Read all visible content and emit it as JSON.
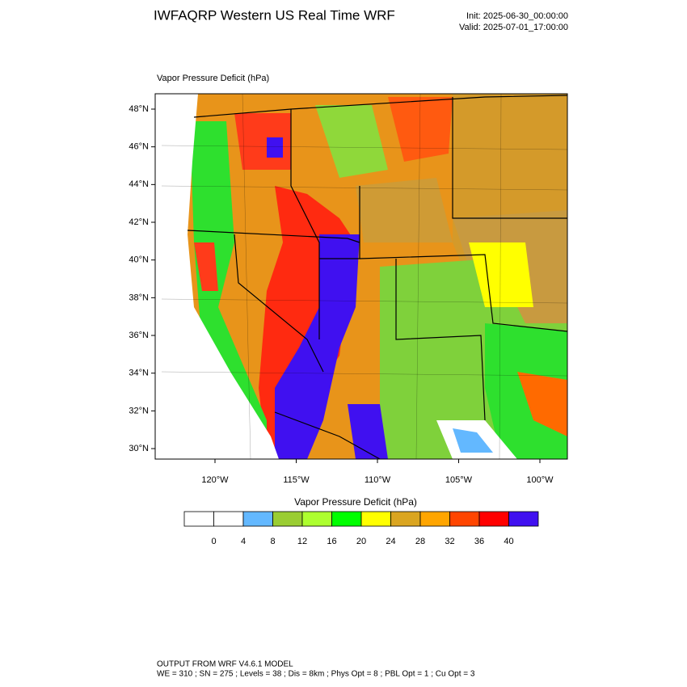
{
  "title": "IWFAQRP Western US Real Time WRF",
  "init": "Init: 2025-06-30_00:00:00",
  "valid": "Valid: 2025-07-01_17:00:00",
  "map": {
    "subtitle": "Vapor Pressure Deficit   (hPa)",
    "lat_labels": [
      "48°N",
      "46°N",
      "44°N",
      "42°N",
      "40°N",
      "38°N",
      "36°N",
      "34°N",
      "32°N",
      "30°N"
    ],
    "lon_labels": [
      "120°W",
      "115°W",
      "110°W",
      "105°W",
      "100°W"
    ]
  },
  "colorbar": {
    "title": "Vapor Pressure Deficit  (hPa)",
    "colors": [
      "#ffffff",
      "#ffffff",
      "#63b8ff",
      "#9acd32",
      "#adff2f",
      "#00ff00",
      "#ffff00",
      "#daa520",
      "#ffa500",
      "#ff4500",
      "#ff0000",
      "#4010f0"
    ],
    "labels": [
      0,
      4,
      8,
      12,
      16,
      20,
      24,
      28,
      32,
      36,
      40
    ]
  },
  "footer": [
    "OUTPUT FROM WRF V4.6.1 MODEL",
    "WE = 310 ; SN = 275 ; Levels = 38 ; Dis = 8km ; Phys Opt = 8 ; PBL Opt = 1 ; Cu Opt = 3"
  ]
}
